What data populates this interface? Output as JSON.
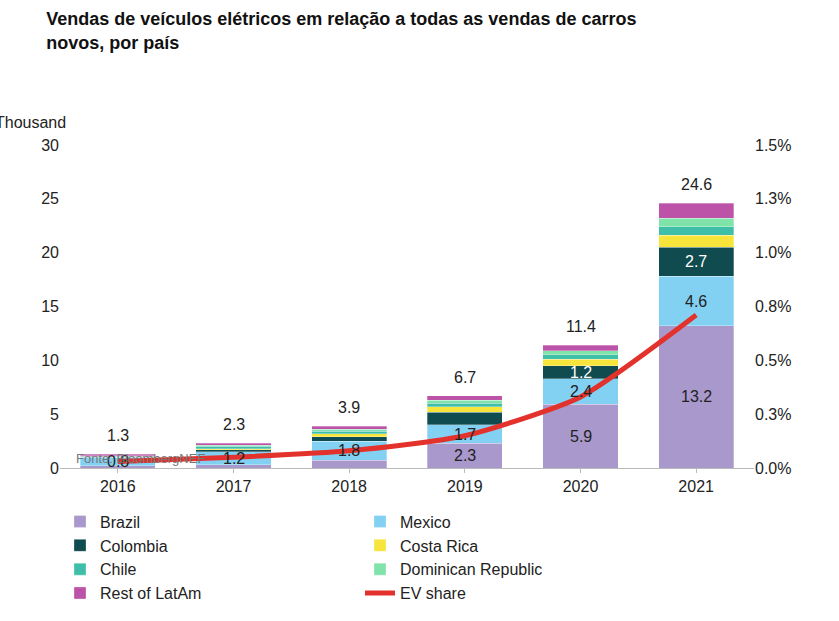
{
  "chart_data": {
    "type": "bar",
    "title": "Vendas de veículos elétricos em relação a todas as vendas de carros novos, por país",
    "ylabel": "Thousand",
    "source": "Fonte: BloombergNEF",
    "categories": [
      "2016",
      "2017",
      "2018",
      "2019",
      "2020",
      "2021"
    ],
    "stacked": true,
    "data_labels": true,
    "grid": false,
    "legend": "bottom",
    "totals": [
      1.3,
      2.3,
      3.9,
      6.7,
      11.4,
      24.6
    ],
    "series": [
      {
        "name": "Brazil",
        "type": "bar",
        "color": "#a898cc",
        "values": [
          0.2,
          0.3,
          0.7,
          2.3,
          5.9,
          13.2
        ],
        "value_labels": [
          null,
          null,
          null,
          "2.3",
          "5.9",
          "13.2"
        ]
      },
      {
        "name": "Mexico",
        "type": "bar",
        "color": "#82d1f3",
        "values": [
          0.8,
          1.2,
          1.8,
          1.7,
          2.4,
          4.6
        ],
        "value_labels": [
          "0.8",
          "1.2",
          "1.8",
          "1.7",
          "2.4",
          "4.6"
        ]
      },
      {
        "name": "Colombia",
        "type": "bar",
        "color": "#0f4b4f",
        "values": [
          0.1,
          0.2,
          0.4,
          1.2,
          1.2,
          2.7
        ],
        "value_labels": [
          null,
          null,
          null,
          null,
          "1.2",
          "2.7"
        ]
      },
      {
        "name": "Costa Rica",
        "type": "bar",
        "color": "#f7e53b",
        "values": [
          0.0,
          0.1,
          0.3,
          0.5,
          0.6,
          1.1
        ]
      },
      {
        "name": "Chile",
        "type": "bar",
        "color": "#3fbfa7",
        "values": [
          0.05,
          0.2,
          0.2,
          0.3,
          0.4,
          0.8
        ]
      },
      {
        "name": "Dominican Republic",
        "type": "bar",
        "color": "#80e3aa",
        "values": [
          0.0,
          0.1,
          0.2,
          0.3,
          0.4,
          0.8
        ]
      },
      {
        "name": "Rest of LatAm",
        "type": "bar",
        "color": "#bd53a9",
        "values": [
          0.15,
          0.2,
          0.3,
          0.4,
          0.5,
          1.4
        ]
      },
      {
        "name": "EV share",
        "type": "line",
        "axis": "y2",
        "color": "#e3322b",
        "values": [
          0.03,
          0.05,
          0.08,
          0.15,
          0.33,
          0.71
        ]
      }
    ],
    "ylim": [
      0,
      30
    ],
    "yticks": [
      0,
      5,
      10,
      15,
      20,
      25,
      30
    ],
    "y2lim": [
      0,
      1.5
    ],
    "y2ticks": [
      {
        "value": 0,
        "label": "0.0%"
      },
      {
        "value": 0.25,
        "label": "0.3%"
      },
      {
        "value": 0.5,
        "label": "0.5%"
      },
      {
        "value": 0.75,
        "label": "0.8%"
      },
      {
        "value": 1.0,
        "label": "1.0%"
      },
      {
        "value": 1.25,
        "label": "1.3%"
      },
      {
        "value": 1.5,
        "label": "1.5%"
      }
    ]
  }
}
